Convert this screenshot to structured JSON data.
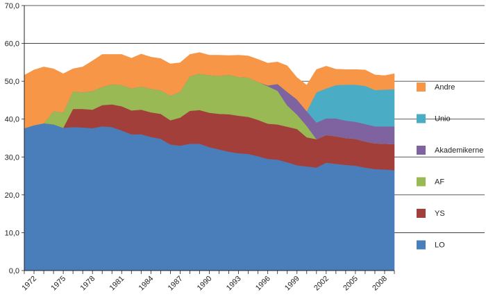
{
  "chart_data": {
    "type": "area",
    "stacked": true,
    "title": "",
    "xlabel": "",
    "ylabel": "",
    "x": [
      1971,
      1972,
      1973,
      1974,
      1975,
      1976,
      1977,
      1978,
      1979,
      1980,
      1981,
      1982,
      1983,
      1984,
      1985,
      1986,
      1987,
      1988,
      1989,
      1990,
      1991,
      1992,
      1993,
      1994,
      1995,
      1996,
      1997,
      1998,
      1999,
      2000,
      2001,
      2002,
      2003,
      2004,
      2005,
      2006,
      2007,
      2008,
      2009
    ],
    "x_tick_labels": [
      "1972",
      "1975",
      "1978",
      "1981",
      "1984",
      "1987",
      "1990",
      "1993",
      "1996",
      "1999",
      "2002",
      "2005",
      "2008"
    ],
    "x_tick_values": [
      1972,
      1975,
      1978,
      1981,
      1984,
      1987,
      1990,
      1993,
      1996,
      1999,
      2002,
      2005,
      2008
    ],
    "ylim": [
      0,
      70
    ],
    "y_ticks": [
      0,
      10,
      20,
      30,
      40,
      50,
      60,
      70
    ],
    "y_tick_labels": [
      "0,0",
      "10,0",
      "20,0",
      "30,0",
      "40,0",
      "50,0",
      "60,0",
      "70,0"
    ],
    "grid": "horizontal",
    "legend_position": "right",
    "series": [
      {
        "name": "LO",
        "color": "#4a7ebb",
        "values": [
          37.6,
          38.4,
          38.9,
          38.6,
          37.7,
          37.9,
          37.8,
          37.6,
          38.1,
          37.9,
          37.0,
          36.0,
          36.0,
          35.3,
          34.8,
          33.3,
          33.0,
          33.5,
          33.5,
          32.6,
          32.0,
          31.4,
          31.0,
          30.8,
          30.2,
          29.5,
          29.3,
          28.6,
          27.8,
          27.5,
          27.2,
          28.5,
          28.2,
          27.9,
          27.7,
          27.2,
          26.8,
          26.7,
          26.5
        ]
      },
      {
        "name": "YS",
        "color": "#a33f3b",
        "values": [
          0,
          0,
          0,
          0,
          0,
          4.8,
          4.9,
          4.9,
          5.6,
          6.0,
          6.4,
          6.3,
          6.5,
          6.5,
          6.6,
          6.4,
          7.4,
          8.7,
          8.9,
          9.1,
          9.4,
          9.9,
          9.9,
          9.8,
          9.6,
          9.3,
          9.3,
          9.4,
          9.6,
          7.7,
          7.5,
          7.3,
          7.3,
          7.1,
          7.1,
          6.9,
          6.8,
          6.8,
          6.9
        ]
      },
      {
        "name": "AF",
        "color": "#98b954",
        "values": [
          0,
          0,
          0,
          3.5,
          4.1,
          4.6,
          4.4,
          4.9,
          4.8,
          5.3,
          5.6,
          5.8,
          6.1,
          6.2,
          6.2,
          6.5,
          6.8,
          9.1,
          9.6,
          9.9,
          10.0,
          10.4,
          10.2,
          10.4,
          10.0,
          9.9,
          8.9,
          5.6,
          3.8,
          3.0,
          0,
          0,
          0,
          0,
          0,
          0,
          0,
          0,
          0
        ]
      },
      {
        "name": "Akademikerne",
        "color": "#7e63a0",
        "values": [
          0,
          0,
          0,
          0,
          0,
          0,
          0,
          0,
          0,
          0,
          0,
          0,
          0,
          0,
          0,
          0,
          0,
          0,
          0,
          0,
          0,
          0,
          0,
          0,
          0,
          0.2,
          1.8,
          3.6,
          4.0,
          3.9,
          4.4,
          4.4,
          4.7,
          4.6,
          4.5,
          4.6,
          4.5,
          4.6,
          4.7
        ]
      },
      {
        "name": "Unio",
        "color": "#4aacc5",
        "values": [
          0,
          0,
          0,
          0,
          0,
          0,
          0,
          0,
          0,
          0,
          0,
          0,
          0,
          0,
          0,
          0,
          0,
          0,
          0,
          0,
          0,
          0,
          0,
          0,
          0,
          0,
          0,
          0,
          0,
          0,
          8.0,
          7.9,
          8.8,
          9.5,
          9.8,
          10.1,
          9.6,
          9.7,
          9.8
        ]
      },
      {
        "name": "Andre",
        "color": "#f79646",
        "values": [
          14.0,
          14.6,
          14.9,
          11.2,
          10.2,
          6.0,
          6.7,
          8.0,
          8.6,
          7.9,
          8.1,
          8.0,
          8.6,
          8.4,
          8.4,
          8.4,
          7.7,
          5.8,
          5.6,
          5.3,
          5.5,
          5.1,
          5.8,
          5.7,
          6.0,
          5.9,
          5.8,
          6.9,
          5.8,
          6.9,
          6.0,
          5.9,
          4.2,
          4.0,
          4.0,
          4.2,
          4.0,
          3.7,
          4.1
        ]
      }
    ]
  }
}
